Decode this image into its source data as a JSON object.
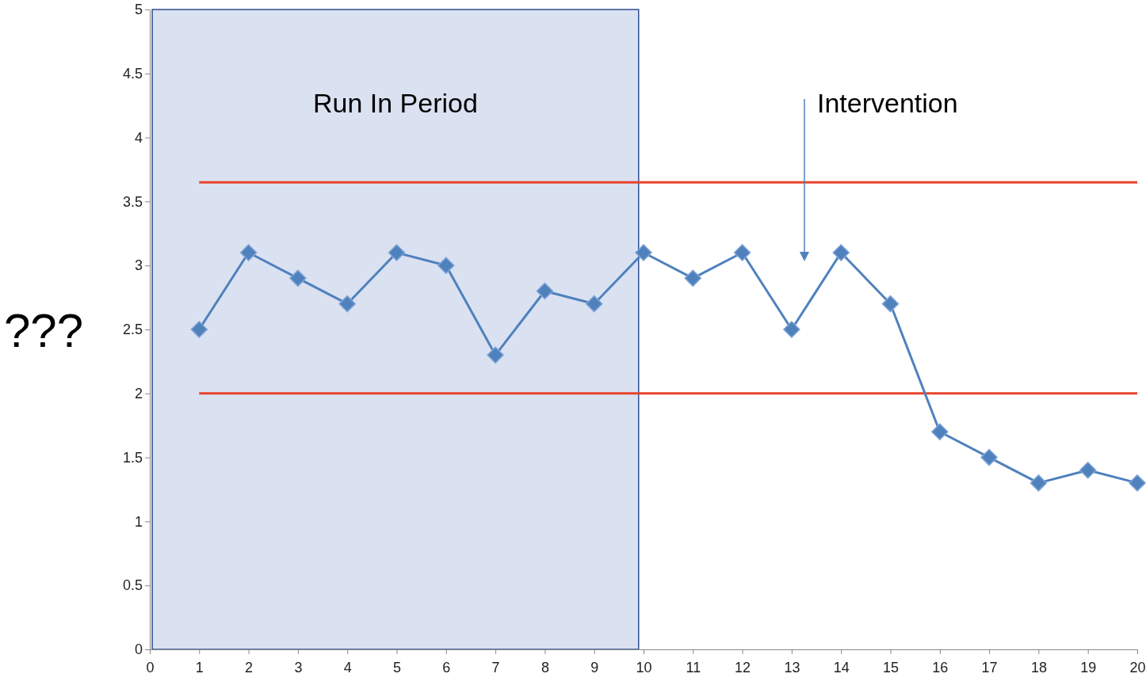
{
  "chart_data": {
    "type": "line",
    "ylabel": "???",
    "x": [
      1,
      2,
      3,
      4,
      5,
      6,
      7,
      8,
      9,
      10,
      11,
      12,
      13,
      14,
      15,
      16,
      17,
      18,
      19,
      20
    ],
    "series": [
      {
        "color": "#4f81bd",
        "values": [
          2.5,
          3.1,
          2.9,
          2.7,
          3.1,
          3.0,
          2.3,
          2.8,
          2.7,
          3.1,
          2.9,
          3.1,
          2.5,
          3.1,
          2.7,
          1.7,
          1.5,
          1.3,
          1.4,
          1.3
        ]
      }
    ],
    "xlim": [
      0,
      20
    ],
    "xticks": [
      0,
      1,
      2,
      3,
      4,
      5,
      6,
      7,
      8,
      9,
      10,
      11,
      12,
      13,
      14,
      15,
      16,
      17,
      18,
      19,
      20
    ],
    "ylim": [
      0,
      5
    ],
    "yticks": [
      0,
      0.5,
      1,
      1.5,
      2,
      2.5,
      3,
      3.5,
      4,
      4.5,
      5
    ],
    "marker": "diamond",
    "line_style": "solid",
    "grid": false,
    "ref_lines": [
      {
        "axis": "y",
        "value": 3.65,
        "color": "#e8432c"
      },
      {
        "axis": "y",
        "value": 2,
        "color": "#e8432c"
      }
    ],
    "bands": [
      {
        "axis": "x",
        "from": 0.05,
        "to": 9.9,
        "label": "Run In Period",
        "color": "#dae1f1"
      }
    ],
    "annotations": [
      "Intervention"
    ]
  }
}
